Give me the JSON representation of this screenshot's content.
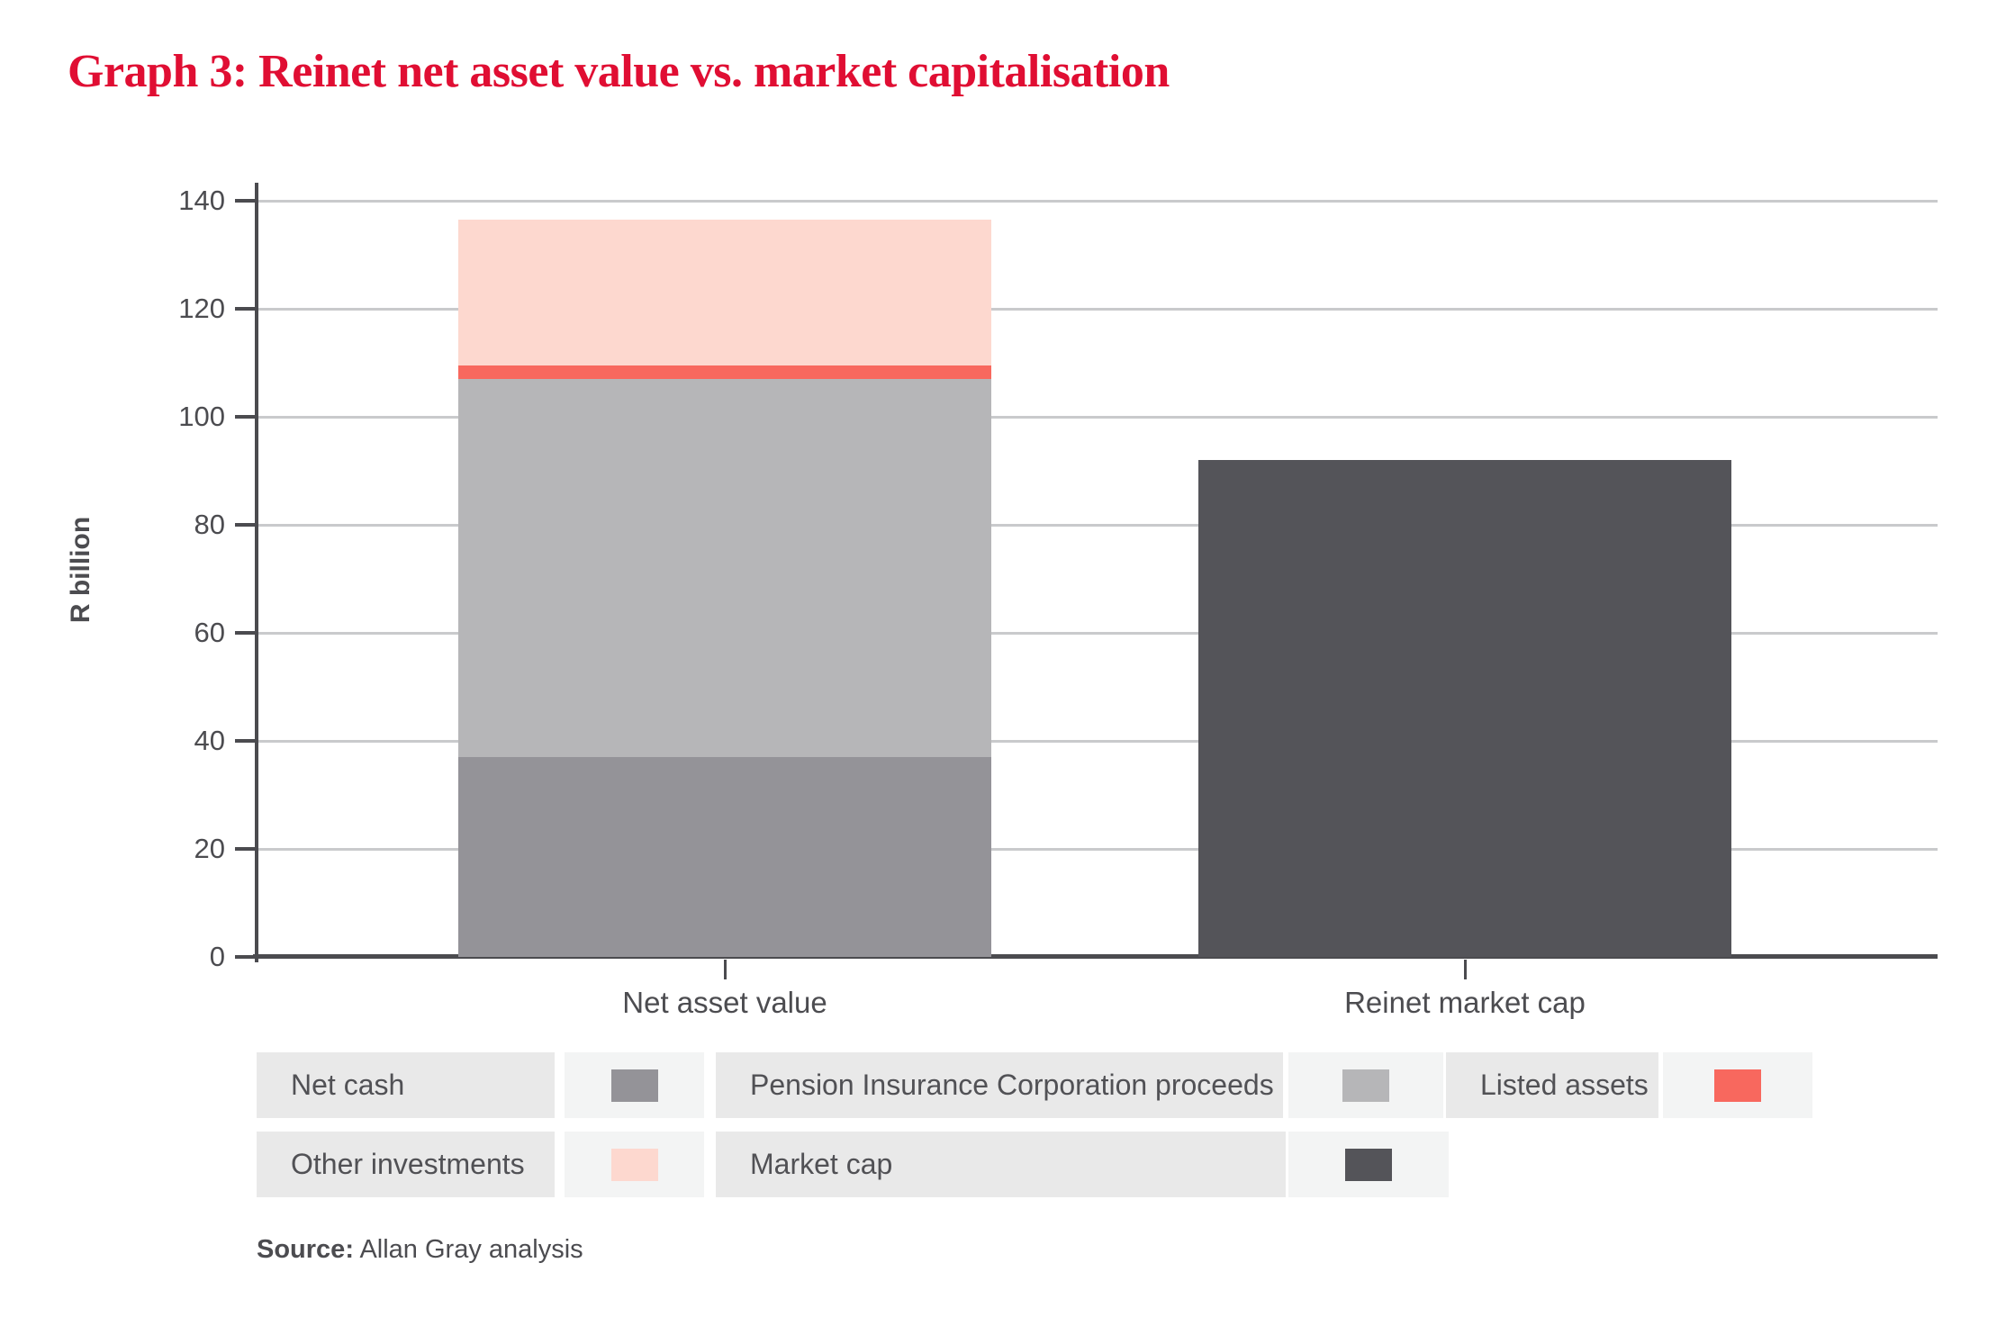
{
  "title": "Graph 3: Reinet net asset value vs. market capitalisation",
  "colors": {
    "title_red": "#e00e33",
    "axis": "#4b4b4f",
    "gridline": "#c9cacc",
    "tick_text": "#4c4c50",
    "legend_text": "#515155",
    "legend_label_cell_bg": "#e9e9e9",
    "legend_swatch_cell_bg": "#f3f4f4",
    "net_cash": "#949398",
    "pension_insurance_corporation_proceeds": "#b6b6b8",
    "listed_assets": "#f8685e",
    "other_investments": "#fdd8cf",
    "market_cap": "#545459"
  },
  "chart_data": {
    "type": "bar",
    "stacked": true,
    "title": "Graph 3: Reinet net asset value vs. market capitalisation",
    "xlabel": "",
    "ylabel": "R billion",
    "ylim": [
      0,
      140
    ],
    "ytick_step": 20,
    "yticks": [
      0,
      20,
      40,
      60,
      80,
      100,
      120,
      140
    ],
    "grid": "horizontal",
    "legend_position": "bottom",
    "categories": [
      "Net asset value",
      "Reinet market cap"
    ],
    "series": [
      {
        "name": "Net cash",
        "color": "#949398",
        "values": [
          37,
          0
        ]
      },
      {
        "name": "Pension Insurance Corporation proceeds",
        "color": "#b6b6b8",
        "values": [
          70,
          0
        ]
      },
      {
        "name": "Listed assets",
        "color": "#f8685e",
        "values": [
          2.5,
          0
        ]
      },
      {
        "name": "Other investments",
        "color": "#fdd8cf",
        "values": [
          27,
          0
        ]
      },
      {
        "name": "Market cap",
        "color": "#545459",
        "values": [
          0,
          92
        ]
      }
    ],
    "bar_totals": [
      136.5,
      92
    ]
  },
  "legend": {
    "rows": [
      {
        "items": [
          {
            "label": "Net cash",
            "color": "#949398"
          },
          {
            "label": "Pension Insurance Corporation proceeds",
            "color": "#b6b6b8"
          },
          {
            "label": "Listed assets",
            "color": "#f8685e"
          }
        ]
      },
      {
        "items": [
          {
            "label": "Other investments",
            "color": "#fdd8cf"
          },
          {
            "label": "Market cap",
            "color": "#545459"
          }
        ]
      }
    ]
  },
  "source": {
    "label": "Source:",
    "text": " Allan Gray analysis"
  }
}
